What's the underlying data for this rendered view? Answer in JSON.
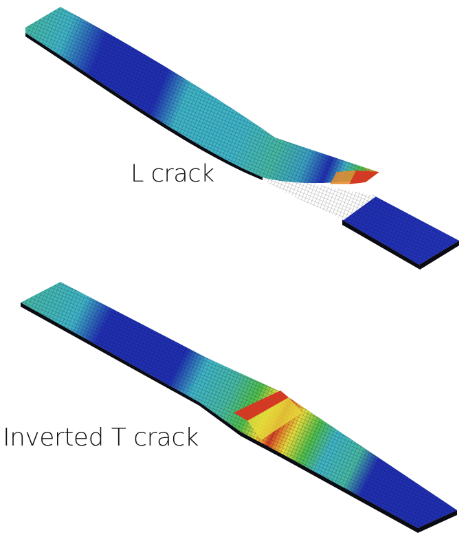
{
  "figure": {
    "panels": [
      {
        "label": "L crack",
        "colors": {
          "dark_blue": "#1f2fb0",
          "cyan": "#3fb4c4",
          "teal": "#46b8a0",
          "green": "#4fbe48",
          "yellow": "#e6dc3a",
          "orange": "#e88a2a",
          "red": "#d23a24",
          "crack": "#ffffff",
          "edge": "#0b0b14"
        }
      },
      {
        "label": "Inverted T crack",
        "colors": {
          "dark_blue": "#1f2fb0",
          "cyan": "#3fb4c4",
          "teal": "#46b8a0",
          "green": "#4fbe48",
          "yellow": "#e6dc3a",
          "orange": "#e88a2a",
          "red": "#d23a24",
          "crack": "#ffffff",
          "edge": "#0b0b14"
        }
      }
    ]
  }
}
